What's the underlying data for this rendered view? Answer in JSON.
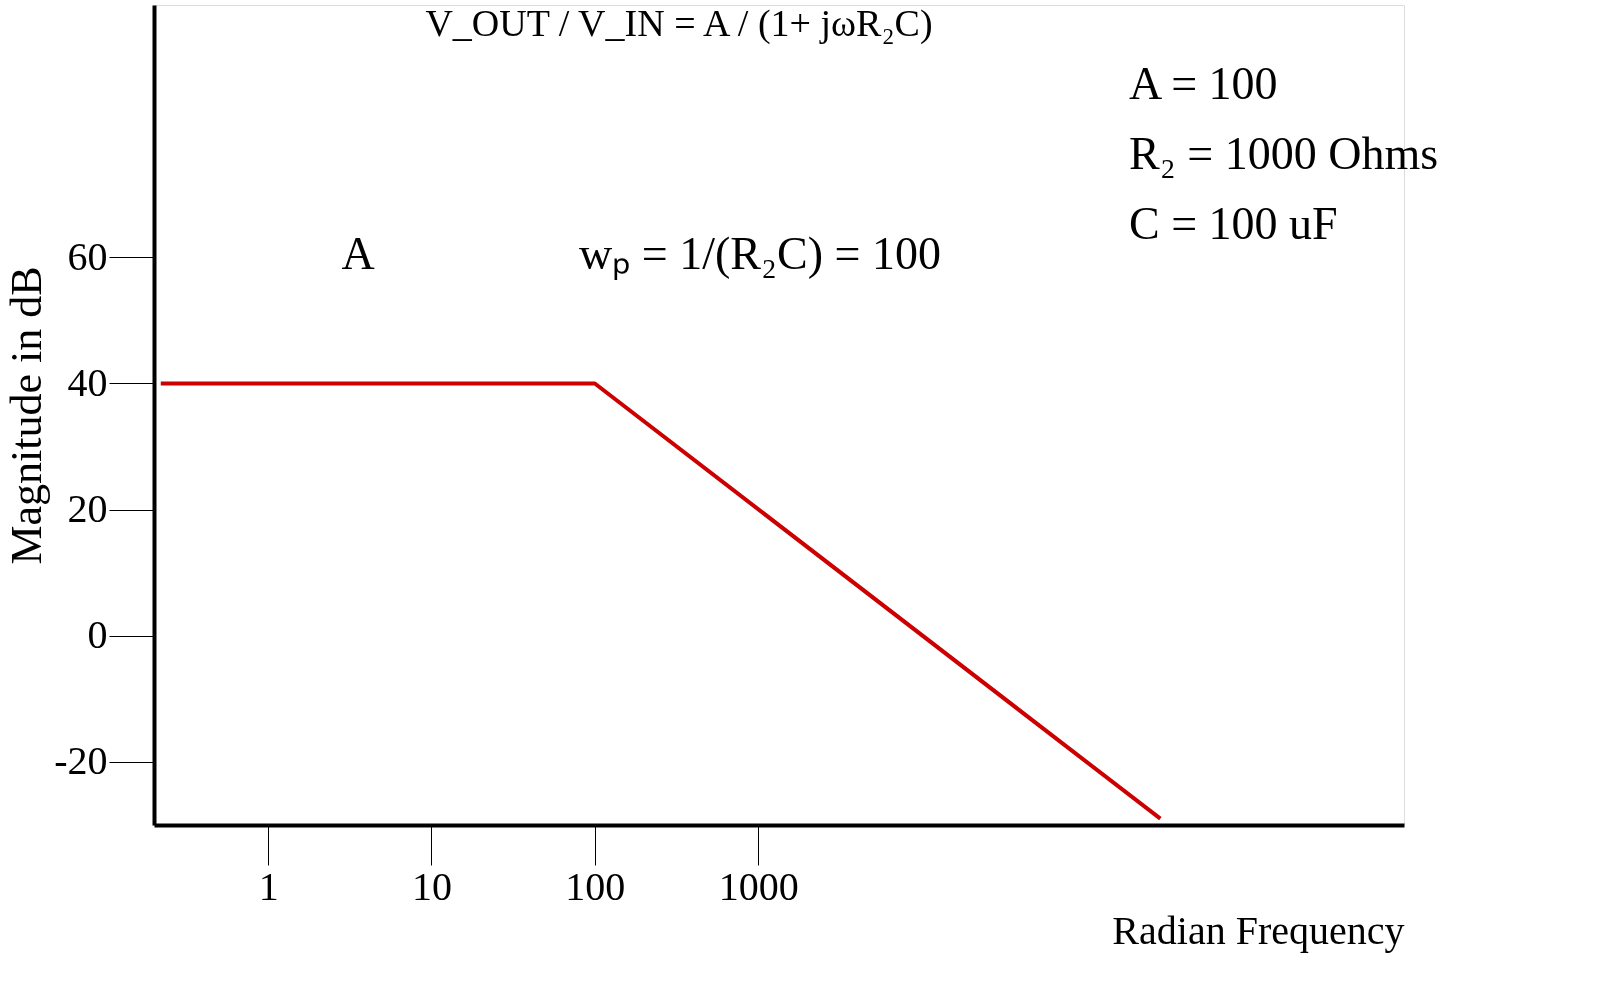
{
  "chart_data": {
    "type": "line",
    "xlabel": "Radian Frequency",
    "ylabel": "Magnitude in dB",
    "x": [
      0.22,
      100,
      290000
    ],
    "series": [
      {
        "color": "#cc0000",
        "values": [
          40,
          40,
          -29
        ]
      }
    ],
    "log": "x",
    "xlim": [
      0.2,
      9000000
    ],
    "ylim": [
      -30,
      100
    ],
    "xticks": [
      1,
      10,
      100,
      1000
    ],
    "yticks": [
      -20,
      0,
      20,
      40,
      60
    ],
    "grid": false,
    "marker": "none",
    "line_style": "solid",
    "annotations": [
      "V_OUT / V_IN = A / (1+ jωR₂C)",
      "A = 100",
      "R₂ = 1000 Ohms",
      "C = 100 uF",
      "A",
      "wₚ = 1/(R₂C) = 100"
    ]
  }
}
